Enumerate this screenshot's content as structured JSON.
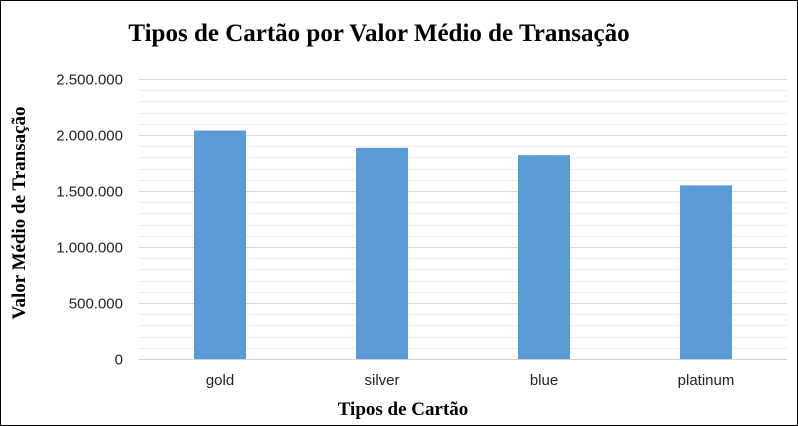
{
  "chart_data": {
    "type": "bar",
    "title": "Tipos de Cartão por Valor Médio de Transação",
    "xlabel": "Tipos de Cartão",
    "ylabel": "Valor Médio de Transação",
    "categories": [
      "gold",
      "silver",
      "blue",
      "platinum"
    ],
    "values": [
      2040000,
      1885000,
      1820000,
      1550000
    ],
    "ylim": [
      0,
      2500000
    ],
    "yticks": [
      0,
      500000,
      1000000,
      1500000,
      2000000,
      2500000
    ],
    "ytick_labels": [
      "0",
      "500.000",
      "1.000.000",
      "1.500.000",
      "2.000.000",
      "2.500.000"
    ],
    "grid": true,
    "bar_color": "#5b9bd5"
  }
}
